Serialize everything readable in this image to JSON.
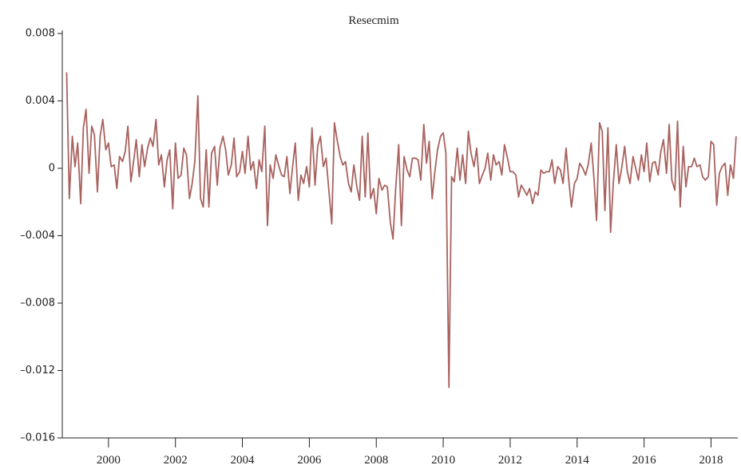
{
  "chart_data": {
    "type": "line",
    "title": "Resecmim",
    "x": [
      1998.75,
      1998.83,
      1998.92,
      1999.0,
      1999.08,
      1999.17,
      1999.25,
      1999.33,
      1999.42,
      1999.5,
      1999.58,
      1999.67,
      1999.75,
      1999.83,
      1999.92,
      2000.0,
      2000.08,
      2000.17,
      2000.25,
      2000.33,
      2000.42,
      2000.5,
      2000.58,
      2000.67,
      2000.75,
      2000.83,
      2000.92,
      2001.0,
      2001.08,
      2001.17,
      2001.25,
      2001.33,
      2001.42,
      2001.5,
      2001.58,
      2001.67,
      2001.75,
      2001.83,
      2001.92,
      2002.0,
      2002.08,
      2002.17,
      2002.25,
      2002.33,
      2002.42,
      2002.5,
      2002.58,
      2002.67,
      2002.75,
      2002.83,
      2002.92,
      2003.0,
      2003.08,
      2003.17,
      2003.25,
      2003.33,
      2003.42,
      2003.5,
      2003.58,
      2003.67,
      2003.75,
      2003.83,
      2003.92,
      2004.0,
      2004.08,
      2004.17,
      2004.25,
      2004.33,
      2004.42,
      2004.5,
      2004.58,
      2004.67,
      2004.75,
      2004.83,
      2004.92,
      2005.0,
      2005.08,
      2005.17,
      2005.25,
      2005.33,
      2005.42,
      2005.5,
      2005.58,
      2005.67,
      2005.75,
      2005.83,
      2005.92,
      2006.0,
      2006.08,
      2006.17,
      2006.25,
      2006.33,
      2006.42,
      2006.5,
      2006.58,
      2006.67,
      2006.75,
      2006.83,
      2006.92,
      2007.0,
      2007.08,
      2007.17,
      2007.25,
      2007.33,
      2007.42,
      2007.5,
      2007.58,
      2007.67,
      2007.75,
      2007.83,
      2007.92,
      2008.0,
      2008.08,
      2008.17,
      2008.25,
      2008.33,
      2008.42,
      2008.5,
      2008.58,
      2008.67,
      2008.75,
      2008.83,
      2008.92,
      2009.0,
      2009.08,
      2009.17,
      2009.25,
      2009.33,
      2009.42,
      2009.5,
      2009.58,
      2009.67,
      2009.75,
      2009.83,
      2009.92,
      2010.0,
      2010.08,
      2010.17,
      2010.25,
      2010.33,
      2010.42,
      2010.5,
      2010.58,
      2010.67,
      2010.75,
      2010.83,
      2010.92,
      2011.0,
      2011.08,
      2011.17,
      2011.25,
      2011.33,
      2011.42,
      2011.5,
      2011.58,
      2011.67,
      2011.75,
      2011.83,
      2011.92,
      2012.0,
      2012.08,
      2012.17,
      2012.25,
      2012.33,
      2012.42,
      2012.5,
      2012.58,
      2012.67,
      2012.75,
      2012.83,
      2012.92,
      2013.0,
      2013.08,
      2013.17,
      2013.25,
      2013.33,
      2013.42,
      2013.5,
      2013.58,
      2013.67,
      2013.75,
      2013.83,
      2013.92,
      2014.0,
      2014.08,
      2014.17,
      2014.25,
      2014.33,
      2014.42,
      2014.5,
      2014.58,
      2014.67,
      2014.75,
      2014.83,
      2014.92,
      2015.0,
      2015.08,
      2015.17,
      2015.25,
      2015.33,
      2015.42,
      2015.5,
      2015.58,
      2015.67,
      2015.75,
      2015.83,
      2015.92,
      2016.0,
      2016.08,
      2016.17,
      2016.25,
      2016.33,
      2016.42,
      2016.5,
      2016.58,
      2016.67,
      2016.75,
      2016.83,
      2016.92,
      2017.0,
      2017.08,
      2017.17,
      2017.25,
      2017.33,
      2017.42,
      2017.5,
      2017.58,
      2017.67,
      2017.75,
      2017.83,
      2017.92,
      2018.0,
      2018.08,
      2018.17,
      2018.25,
      2018.33,
      2018.42,
      2018.5,
      2018.58,
      2018.67,
      2018.75
    ],
    "series": [
      {
        "name": "Resecmim",
        "color": "#a8625f",
        "values": [
          0.0057,
          -0.0018,
          0.0019,
          0.0001,
          0.0015,
          -0.0021,
          0.0024,
          0.0035,
          -0.0003,
          0.0025,
          0.002,
          -0.0014,
          0.0019,
          0.0029,
          0.0011,
          0.0015,
          0.0001,
          0.0002,
          -0.0012,
          0.0007,
          0.0004,
          0.001,
          0.0025,
          -0.0008,
          0.0004,
          0.0017,
          -0.0005,
          0.0014,
          0.0001,
          0.0012,
          0.0018,
          0.0013,
          0.0029,
          0.0002,
          0.0008,
          -0.0011,
          0.0005,
          0.0011,
          -0.0024,
          0.0015,
          -0.0006,
          -0.0004,
          0.0012,
          0.0008,
          -0.0018,
          -0.0009,
          0.0004,
          0.0043,
          -0.0018,
          -0.0023,
          0.0011,
          -0.0023,
          0.0009,
          0.0013,
          -0.001,
          0.0012,
          0.0019,
          0.0011,
          -0.0004,
          0.0002,
          0.0018,
          -0.0005,
          -0.0002,
          0.001,
          -0.0003,
          0.0019,
          -0.0001,
          0.0004,
          -0.0012,
          0.0005,
          -0.0002,
          0.0025,
          -0.0034,
          0.0002,
          -0.0006,
          0.0008,
          0.0002,
          -0.0004,
          -0.0005,
          0.0007,
          -0.0015,
          0.0001,
          0.0015,
          -0.0019,
          -0.0004,
          -0.0009,
          0.0001,
          -0.0011,
          0.0024,
          -0.001,
          0.0013,
          0.0019,
          0.0001,
          0.0006,
          -0.0012,
          -0.0033,
          0.0027,
          0.0017,
          0.0007,
          0.0002,
          0.0004,
          -0.0009,
          -0.0014,
          0.0002,
          -0.0011,
          -0.0019,
          0.0019,
          -0.0017,
          0.0021,
          -0.0018,
          -0.0012,
          -0.0027,
          -0.0006,
          -0.0013,
          -0.001,
          -0.0011,
          -0.0032,
          -0.0042,
          -0.0012,
          0.0014,
          -0.0034,
          0.0007,
          -0.0001,
          -0.0005,
          0.0006,
          0.0006,
          0.0005,
          -0.0007,
          0.0026,
          0.0003,
          0.0016,
          -0.0018,
          -0.0002,
          0.0011,
          0.0019,
          0.0021,
          0.0009,
          -0.013,
          -0.0005,
          -0.0008,
          0.0012,
          -0.0007,
          0.0008,
          -0.0009,
          0.0022,
          0.0009,
          0.0001,
          0.0012,
          -0.0009,
          -0.0004,
          0.0,
          0.0009,
          -0.0007,
          0.0008,
          0.0002,
          0.0004,
          -0.0004,
          0.0014,
          0.0006,
          -0.0002,
          -0.0002,
          -0.0004,
          -0.0017,
          -0.001,
          -0.0013,
          -0.0016,
          -0.0012,
          -0.0021,
          -0.0014,
          -0.0016,
          -0.0001,
          -0.0003,
          -0.0002,
          -0.0002,
          0.0005,
          -0.0009,
          0.0001,
          -0.0001,
          -0.0009,
          0.0012,
          -0.0007,
          -0.0023,
          -0.0009,
          -0.0006,
          0.0003,
          0.0,
          -0.0004,
          0.0002,
          0.0015,
          -0.0005,
          -0.0031,
          0.0027,
          0.0022,
          -0.0025,
          0.0024,
          -0.0038,
          -0.0009,
          0.0014,
          -0.0009,
          0.0,
          0.0013,
          -0.0002,
          -0.0009,
          0.0007,
          0.0,
          -0.0007,
          0.0008,
          -0.0002,
          0.0015,
          -0.0008,
          0.0003,
          0.0004,
          -0.0004,
          0.001,
          0.0017,
          -0.0003,
          0.0026,
          -0.0007,
          -0.0013,
          0.0028,
          -0.0023,
          0.0013,
          -0.0011,
          0.0001,
          0.0001,
          0.0006,
          0.0001,
          0.0002,
          -0.0005,
          -0.0007,
          -0.0005,
          0.0016,
          0.0014,
          -0.0022,
          -0.0003,
          0.0001,
          0.0003,
          -0.0016,
          0.0002,
          -0.0006,
          0.0019
        ]
      }
    ],
    "xlim": [
      1998.62,
      2018.8
    ],
    "xticks": [
      2000,
      2002,
      2004,
      2006,
      2008,
      2010,
      2012,
      2014,
      2016,
      2018
    ],
    "ylim": [
      -0.016,
      0.008
    ],
    "yticks": [
      {
        "value": -0.016,
        "label": "–0.016"
      },
      {
        "value": -0.012,
        "label": "–0.012"
      },
      {
        "value": -0.008,
        "label": "–0.008"
      },
      {
        "value": -0.004,
        "label": "–0.004"
      },
      0,
      0.004,
      0.008
    ]
  }
}
